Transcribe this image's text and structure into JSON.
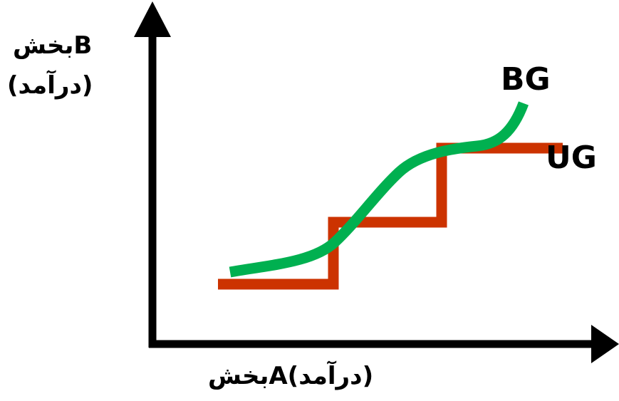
{
  "y_axis": {
    "label_line1": "Bبخش",
    "label_line2": "(درآمد)"
  },
  "x_axis": {
    "label": "(درآمد)Aبخش"
  },
  "curves": {
    "bg": {
      "name": "BG",
      "color": "#00b050"
    },
    "ug": {
      "name": "UG",
      "color": "#cc3300"
    }
  },
  "axis_color": "#000000"
}
